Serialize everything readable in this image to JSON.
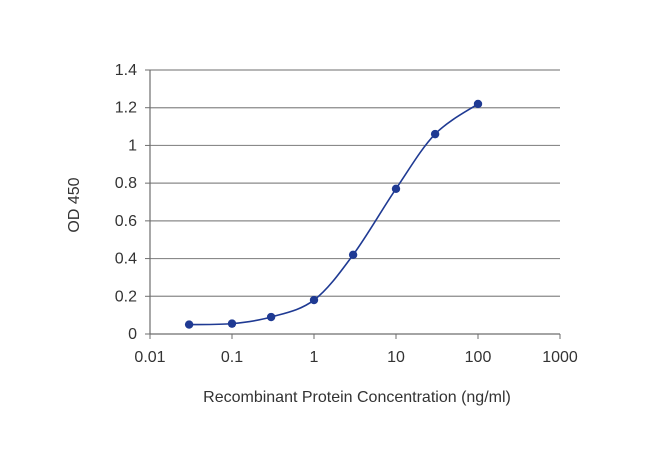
{
  "chart_data": {
    "type": "line",
    "title": "",
    "xlabel": "Recombinant Protein Concentration (ng/ml)",
    "ylabel": "OD 450",
    "x_scale": "log",
    "xlim": [
      0.01,
      1000
    ],
    "ylim": [
      0,
      1.4
    ],
    "x_ticks": [
      "0.01",
      "0.1",
      "1",
      "10",
      "100",
      "1000"
    ],
    "y_ticks": [
      "0",
      "0.2",
      "0.4",
      "0.6",
      "0.8",
      "1",
      "1.2",
      "1.4"
    ],
    "grid": "horizontal",
    "legend": "none",
    "series": [
      {
        "x": [
          0.03,
          0.1,
          0.3,
          1,
          3,
          10,
          30,
          100
        ],
        "y": [
          0.05,
          0.055,
          0.09,
          0.18,
          0.42,
          0.77,
          1.06,
          1.22
        ],
        "color": "#1f3a93"
      }
    ]
  }
}
